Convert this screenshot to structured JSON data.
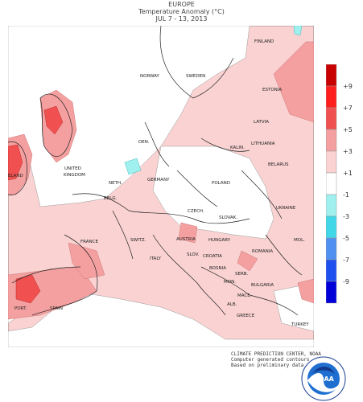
{
  "header": {
    "region": "EUROPE",
    "subtitle": "Temperature Anomaly (°C)",
    "period": "JUL 7 - 13, 2013"
  },
  "legend": {
    "labels": [
      "+9",
      "+7",
      "+5",
      "+3",
      "+1",
      "-1",
      "-3",
      "-5",
      "-7",
      "-9"
    ],
    "colors": [
      "#c80000",
      "#ff1e1e",
      "#f05050",
      "#f5a0a0",
      "#fad2d2",
      "#ffffff",
      "#a0f0f0",
      "#40d8e8",
      "#5090f0",
      "#1e50f0",
      "#0000d8"
    ]
  },
  "countries": {
    "finland": "FINLAND",
    "norway": "NORWAY",
    "sweden": "SWEDEN",
    "estonia": "ESTONIA",
    "latvia": "LATVIA",
    "lithuania": "LITHUANIA",
    "kalin": "KALIN.",
    "belarus": "BELARUS",
    "den": "DEN.",
    "ireland": "ELAND",
    "uk1": "UNITED",
    "uk2": "KINGDOM",
    "neth": "NETH.",
    "germany": "GERMANY",
    "poland": "POLAND",
    "belg": "BELG.",
    "czech": "CZECH.",
    "slovak": "SLOVAK.",
    "ukraine": "UKRAINE",
    "france": "FRANCE",
    "switz": "SWITZ.",
    "austria": "AUSTRIA",
    "hungary": "HUNGARY",
    "mol": "MOL.",
    "slov": "SLOV.",
    "croatia": "CROATIA",
    "romania": "ROMANIA",
    "italy": "ITALY",
    "bosnia": "BOSNIA",
    "serb": "SERB.",
    "mon": "MON.",
    "bulgaria": "BULGARIA",
    "mace": "MACE.",
    "alb": "ALB.",
    "greece": "GREECE",
    "turkey": "TURKEY",
    "port": "PORT.",
    "spain": "SPAIN"
  },
  "credits": {
    "line1": "CLIMATE PREDICTION CENTER, NOAA",
    "line2": "Computer generated contours",
    "line3": "Based on preliminary data"
  },
  "logo": {
    "text": "NOAA",
    "ring_text": "NATIONAL OCEANIC AND ATMOSPHERIC ADMINISTRATION"
  }
}
